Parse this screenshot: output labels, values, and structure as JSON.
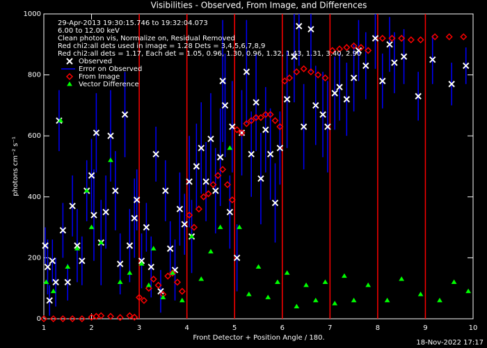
{
  "chart_data": {
    "type": "scatter",
    "title": "Visibilities - Observed, From Image, and Differences",
    "x_label": "Front Detector + Position Angle / 180.",
    "y_label": "photons cm⁻² s⁻¹",
    "footer": "18-Nov-2022 17:17",
    "annotations": [
      "29-Apr-2013 19:30:15.746 to 19:32:04.073",
      "6.00 to 12.00 keV",
      "Clean photon vis,    Normalize on, Residual Removed",
      "Red chi2:all dets used in image = 1.28   Dets = 3,4,5,6,7,8,9",
      "Red chi2:all dets = 1.17,  Each det = 1.05, 0.96, 1.30, 0.96, 1.32, 1.43, 1.31, 3.40, 2.90"
    ],
    "error_label": "Error on Observed",
    "error_color": "#0000ff",
    "boundary_color": "#ff0000",
    "boundaries": [
      3,
      4,
      5,
      6,
      7,
      8,
      9
    ],
    "xlim": [
      1,
      10
    ],
    "ylim": [
      0,
      1000
    ],
    "xticks": [
      1,
      2,
      3,
      4,
      5,
      6,
      7,
      8,
      9,
      10
    ],
    "yticks": [
      0,
      200,
      400,
      600,
      800,
      1000
    ],
    "series": [
      {
        "name": "Observed",
        "color": "#ffffff",
        "marker": "x",
        "x": [
          1.03,
          1.08,
          1.12,
          1.18,
          1.25,
          1.32,
          1.4,
          1.5,
          1.6,
          1.7,
          1.8,
          1.9,
          2.0,
          2.05,
          2.1,
          2.2,
          2.3,
          2.4,
          2.5,
          2.6,
          2.7,
          2.8,
          2.9,
          2.95,
          3.05,
          3.15,
          3.25,
          3.35,
          3.45,
          3.55,
          3.65,
          3.75,
          3.85,
          3.95,
          4.05,
          4.1,
          4.2,
          4.3,
          4.4,
          4.5,
          4.6,
          4.7,
          4.75,
          4.8,
          4.9,
          4.95,
          5.05,
          5.15,
          5.25,
          5.35,
          5.45,
          5.55,
          5.65,
          5.75,
          5.85,
          5.95,
          6.1,
          6.25,
          6.35,
          6.45,
          6.6,
          6.7,
          6.85,
          6.95,
          7.1,
          7.2,
          7.35,
          7.5,
          7.6,
          7.75,
          7.95,
          8.1,
          8.25,
          8.35,
          8.55,
          8.85,
          9.15,
          9.55,
          9.85
        ],
        "values": [
          240,
          170,
          60,
          190,
          120,
          650,
          290,
          120,
          370,
          240,
          190,
          420,
          470,
          340,
          610,
          250,
          350,
          600,
          420,
          180,
          670,
          240,
          330,
          390,
          190,
          300,
          170,
          540,
          90,
          420,
          230,
          160,
          360,
          310,
          450,
          270,
          500,
          560,
          450,
          590,
          420,
          530,
          780,
          700,
          350,
          630,
          200,
          610,
          810,
          540,
          710,
          460,
          620,
          540,
          380,
          560,
          720,
          860,
          960,
          630,
          950,
          700,
          670,
          630,
          740,
          760,
          720,
          790,
          880,
          830,
          920,
          780,
          900,
          840,
          860,
          730,
          850,
          770,
          830
        ],
        "errors": [
          60,
          90,
          50,
          70,
          80,
          100,
          90,
          60,
          100,
          120,
          80,
          100,
          120,
          150,
          130,
          140,
          120,
          150,
          130,
          100,
          140,
          120,
          130,
          100,
          90,
          80,
          100,
          90,
          70,
          100,
          90,
          100,
          120,
          100,
          150,
          120,
          140,
          150,
          130,
          150,
          140,
          160,
          200,
          170,
          120,
          150,
          110,
          140,
          170,
          140,
          160,
          150,
          140,
          150,
          130,
          120,
          160,
          150,
          130,
          140,
          140,
          130,
          140,
          150,
          120,
          110,
          120,
          110,
          100,
          110,
          100,
          90,
          90,
          100,
          90,
          80,
          80,
          70,
          60
        ]
      },
      {
        "name": "From Image",
        "color": "#ff0000",
        "marker": "diamond",
        "x": [
          1.0,
          1.2,
          1.4,
          1.6,
          1.8,
          2.0,
          2.1,
          2.2,
          2.4,
          2.6,
          2.8,
          2.9,
          3.0,
          3.1,
          3.2,
          3.3,
          3.4,
          3.5,
          3.6,
          3.7,
          3.8,
          3.9,
          4.05,
          4.15,
          4.25,
          4.35,
          4.45,
          4.55,
          4.65,
          4.75,
          4.85,
          4.95,
          5.05,
          5.15,
          5.25,
          5.35,
          5.45,
          5.55,
          5.65,
          5.75,
          5.85,
          5.95,
          6.05,
          6.15,
          6.3,
          6.45,
          6.6,
          6.75,
          6.9,
          7.05,
          7.2,
          7.35,
          7.5,
          7.65,
          7.8,
          8.1,
          8.3,
          8.5,
          8.7,
          8.9,
          9.2,
          9.5,
          9.8
        ],
        "values": [
          0,
          0,
          0,
          0,
          0,
          5,
          8,
          10,
          8,
          4,
          10,
          5,
          70,
          60,
          100,
          130,
          110,
          80,
          140,
          150,
          120,
          90,
          340,
          300,
          360,
          400,
          410,
          440,
          470,
          490,
          440,
          390,
          620,
          610,
          640,
          650,
          660,
          660,
          670,
          670,
          650,
          630,
          780,
          790,
          810,
          820,
          810,
          800,
          790,
          880,
          885,
          890,
          895,
          890,
          880,
          920,
          920,
          920,
          915,
          915,
          925,
          925,
          925
        ]
      },
      {
        "name": "Vector Difference",
        "color": "#00ff00",
        "marker": "triangle",
        "x": [
          1.05,
          1.2,
          1.35,
          1.5,
          1.7,
          1.9,
          2.0,
          2.2,
          2.4,
          2.6,
          2.8,
          3.05,
          3.2,
          3.3,
          3.5,
          3.7,
          3.9,
          4.1,
          4.3,
          4.5,
          4.7,
          4.9,
          5.1,
          5.3,
          5.5,
          5.7,
          5.9,
          6.1,
          6.3,
          6.5,
          6.7,
          6.9,
          7.1,
          7.3,
          7.5,
          7.8,
          8.2,
          8.5,
          8.9,
          9.3,
          9.6,
          9.9
        ],
        "values": [
          120,
          90,
          650,
          170,
          230,
          420,
          300,
          250,
          520,
          120,
          150,
          180,
          110,
          230,
          70,
          150,
          60,
          270,
          130,
          220,
          300,
          560,
          300,
          80,
          170,
          70,
          120,
          150,
          40,
          110,
          60,
          120,
          50,
          140,
          60,
          110,
          60,
          130,
          80,
          60,
          120,
          90
        ]
      }
    ]
  }
}
